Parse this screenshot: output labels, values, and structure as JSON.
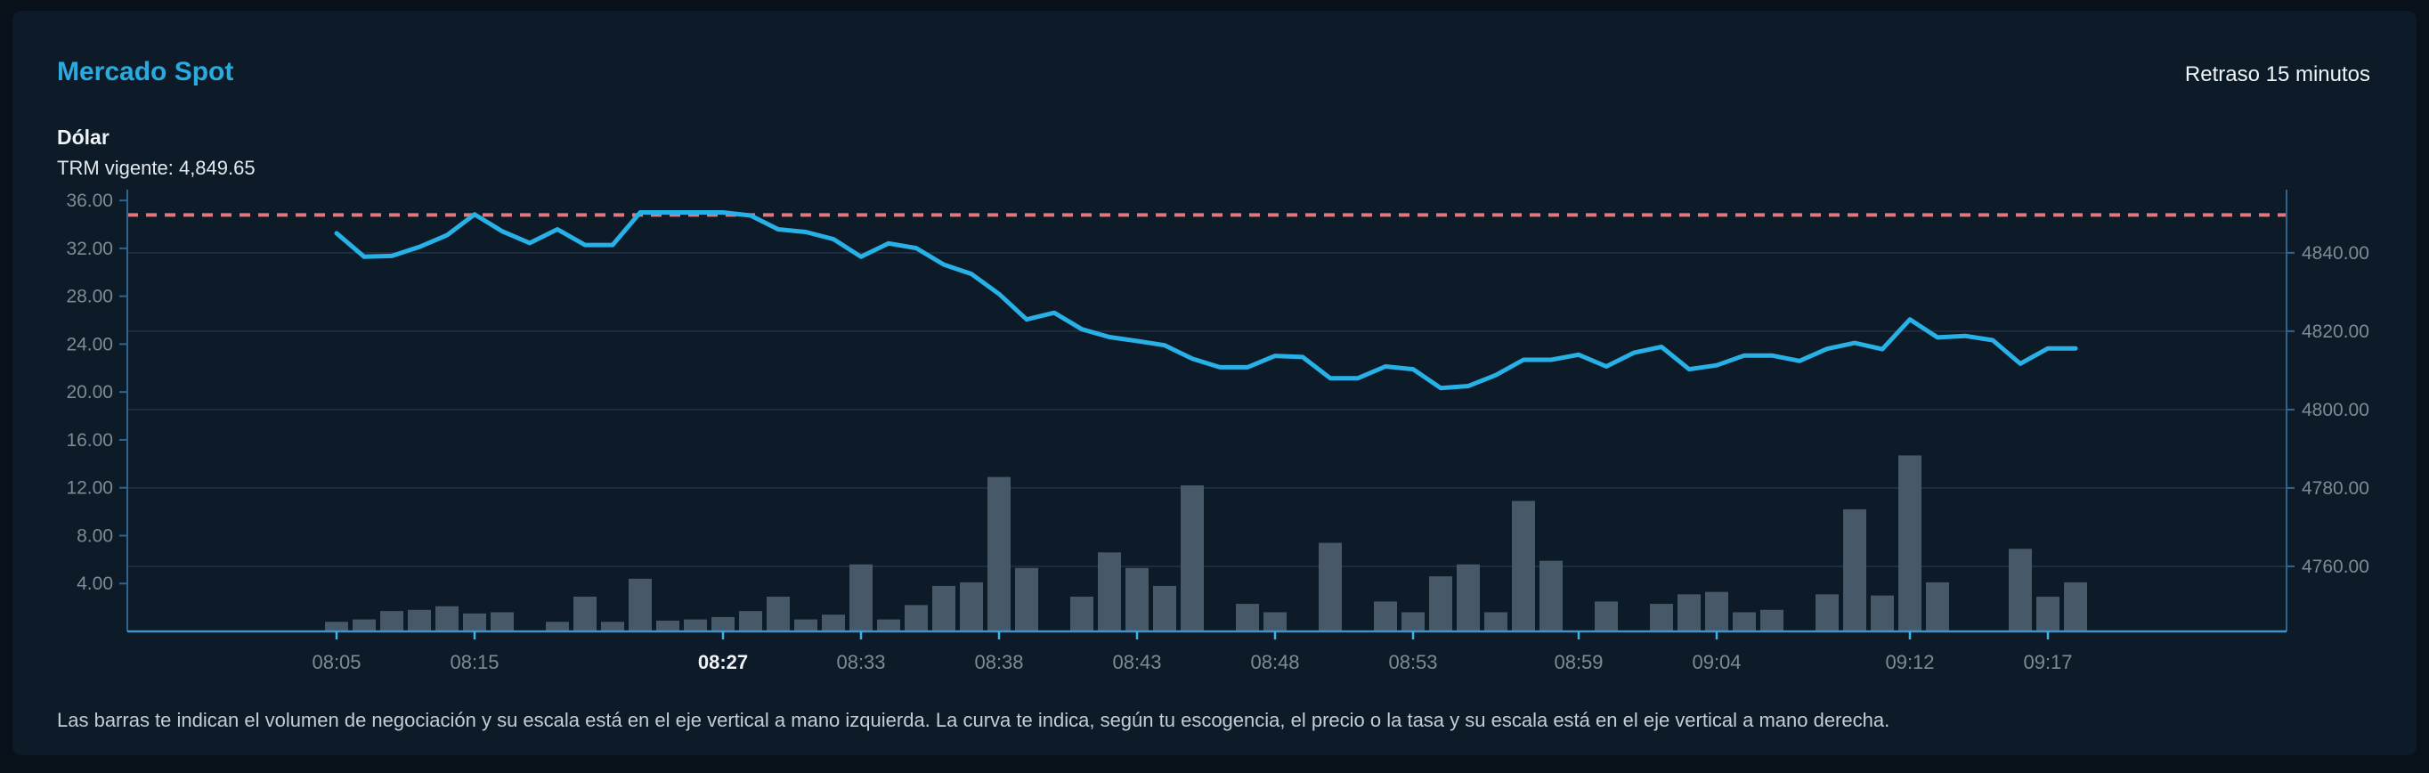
{
  "header": {
    "title": "Mercado Spot",
    "delay_note": "Retraso 15 minutos",
    "instrument": "Dólar",
    "trm_label": "TRM vigente:",
    "trm_value": "4,849.65"
  },
  "footer": {
    "description": "Las barras te indican el volumen de negociación y su escala está en el eje vertical a mano izquierda. La curva te indica, según tu escogencia, el precio o la tasa y su escala está en el eje vertical a mano derecha."
  },
  "colors": {
    "accent_cyan": "#2aabdf",
    "line_blue": "#27b1e7",
    "bar_slate": "#475969",
    "reference_red": "#e1787f",
    "grid": "#223545",
    "axis_side": "#31648c",
    "axis_bottom": "#3f93c7",
    "tick_mark": "#36b6e9",
    "axis_label": "#7e8b97",
    "xlabel_highlight": "#eef3f6",
    "card_bg": "#0d1a28",
    "page_bg": "#081019"
  },
  "chart_data": {
    "type": "combo",
    "title": "Mercado Spot - Dólar",
    "point_count": 64,
    "x_tick_labels": [
      {
        "index": 0,
        "label": "08:05",
        "highlight": false
      },
      {
        "index": 5,
        "label": "08:15",
        "highlight": false
      },
      {
        "index": 14,
        "label": "08:27",
        "highlight": true
      },
      {
        "index": 19,
        "label": "08:33",
        "highlight": false
      },
      {
        "index": 24,
        "label": "08:38",
        "highlight": false
      },
      {
        "index": 29,
        "label": "08:43",
        "highlight": false
      },
      {
        "index": 34,
        "label": "08:48",
        "highlight": false
      },
      {
        "index": 39,
        "label": "08:53",
        "highlight": false
      },
      {
        "index": 45,
        "label": "08:59",
        "highlight": false
      },
      {
        "index": 50,
        "label": "09:04",
        "highlight": false
      },
      {
        "index": 57,
        "label": "09:12",
        "highlight": false
      },
      {
        "index": 62,
        "label": "09:17",
        "highlight": false
      }
    ],
    "left_axis": {
      "name": "volumen",
      "min": 0,
      "max": 36.9,
      "ticks": [
        {
          "value": 36,
          "label": "36.00"
        },
        {
          "value": 32,
          "label": "32.00"
        },
        {
          "value": 28,
          "label": "28.00"
        },
        {
          "value": 24,
          "label": "24.00"
        },
        {
          "value": 20,
          "label": "20.00"
        },
        {
          "value": 16,
          "label": "16.00"
        },
        {
          "value": 12,
          "label": "12.00"
        },
        {
          "value": 8,
          "label": "8.00"
        },
        {
          "value": 4,
          "label": "4.00"
        }
      ]
    },
    "right_axis": {
      "name": "precio",
      "min": 4743.4,
      "max": 4856.1,
      "ticks": [
        {
          "value": 4840,
          "label": "4840.00"
        },
        {
          "value": 4820,
          "label": "4820.00"
        },
        {
          "value": 4800,
          "label": "4800.00"
        },
        {
          "value": 4780,
          "label": "4780.00"
        },
        {
          "value": 4760,
          "label": "4760.00"
        }
      ]
    },
    "reference_line": {
      "value": 4849.65,
      "label": "TRM vigente",
      "style": "dashed",
      "color": "#e1787f"
    },
    "series": [
      {
        "name": "volumen-negociacion",
        "type": "bar",
        "axis": "left",
        "color": "#475969",
        "values": [
          0.8,
          1.0,
          1.7,
          1.8,
          2.1,
          1.5,
          1.6,
          0,
          0.8,
          2.9,
          0.8,
          4.4,
          0.9,
          1.0,
          1.2,
          1.7,
          2.9,
          1.0,
          1.4,
          5.6,
          1.0,
          2.2,
          3.8,
          4.1,
          12.9,
          5.3,
          0,
          2.9,
          6.6,
          5.3,
          3.8,
          12.2,
          0,
          2.3,
          1.6,
          0,
          7.4,
          0,
          2.5,
          1.6,
          4.6,
          5.6,
          1.6,
          10.9,
          5.9,
          0,
          2.5,
          0,
          2.3,
          3.1,
          3.3,
          1.6,
          1.8,
          0,
          3.1,
          10.2,
          3.0,
          14.7,
          4.1,
          0,
          0,
          6.9,
          2.9,
          4.1
        ]
      },
      {
        "name": "precio-tasa",
        "type": "line",
        "axis": "right",
        "color": "#27b1e7",
        "values": [
          4845.0,
          4839.0,
          4839.2,
          4841.5,
          4844.5,
          4849.8,
          4845.5,
          4842.5,
          4846.0,
          4842.0,
          4842.0,
          4850.3,
          4850.3,
          4850.3,
          4850.3,
          4849.5,
          4846.0,
          4845.3,
          4843.5,
          4839.0,
          4842.4,
          4841.2,
          4837.0,
          4834.6,
          4829.5,
          4823.0,
          4824.7,
          4820.5,
          4818.5,
          4817.5,
          4816.4,
          4813.0,
          4810.8,
          4810.8,
          4813.7,
          4813.4,
          4808.0,
          4808.0,
          4811.0,
          4810.3,
          4805.5,
          4806.0,
          4808.8,
          4812.7,
          4812.7,
          4814.0,
          4811.0,
          4814.5,
          4816.0,
          4810.3,
          4811.3,
          4813.8,
          4813.8,
          4812.4,
          4815.5,
          4817.0,
          4815.4,
          4823.0,
          4818.4,
          4818.8,
          4817.7,
          4811.7,
          4815.6,
          4815.6
        ]
      }
    ]
  }
}
